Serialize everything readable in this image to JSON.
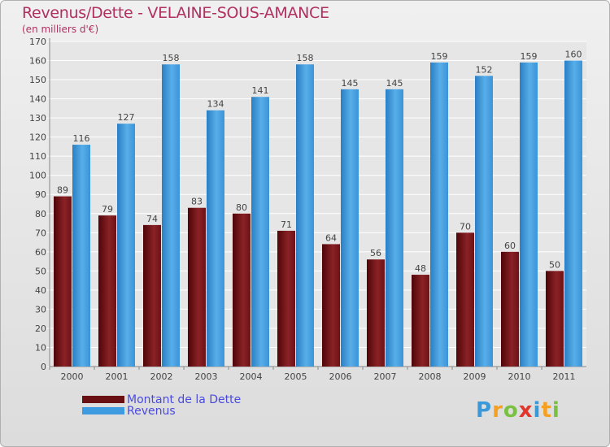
{
  "chart_data": {
    "type": "bar",
    "title": "Revenus/Dette - VELAINE-SOUS-AMANCE",
    "subtitle": "(en milliers d'€)",
    "categories": [
      "2000",
      "2001",
      "2002",
      "2003",
      "2004",
      "2005",
      "2006",
      "2007",
      "2008",
      "2009",
      "2010",
      "2011"
    ],
    "series": [
      {
        "name": "Montant de la Dette",
        "color": "#7a1518",
        "values": [
          89,
          79,
          74,
          83,
          80,
          71,
          64,
          56,
          48,
          70,
          60,
          50
        ]
      },
      {
        "name": "Revenus",
        "color": "#3f9be0",
        "values": [
          116,
          127,
          158,
          134,
          141,
          158,
          145,
          145,
          159,
          152,
          159,
          160
        ]
      }
    ],
    "ylim": [
      0,
      170
    ],
    "yticks": [
      0,
      10,
      20,
      30,
      40,
      50,
      60,
      70,
      80,
      90,
      100,
      110,
      120,
      130,
      140,
      150,
      160,
      170
    ],
    "grid": true,
    "legend": "bottom-left"
  },
  "logo": {
    "text": "Proxiti"
  }
}
